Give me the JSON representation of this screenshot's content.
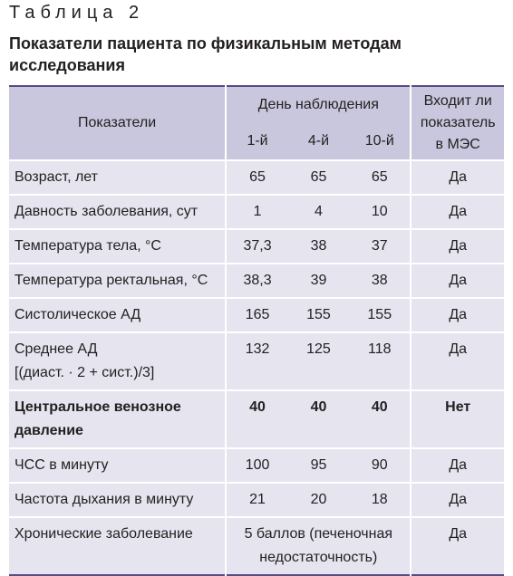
{
  "header": {
    "label": "Таблица 2",
    "title": "Показатели пациента по физикальным методам исследования"
  },
  "table": {
    "columns": {
      "indicator": "Показатели",
      "days": "День наблюдения",
      "day_list": [
        "1-й",
        "4-й",
        "10-й"
      ],
      "mes": "Входит ли показатель в МЭС"
    },
    "rows": [
      {
        "label": "Возраст, лет",
        "values": [
          "65",
          "65",
          "65"
        ],
        "mes": "Да"
      },
      {
        "label": "Давность заболевания, сут",
        "values": [
          "1",
          "4",
          "10"
        ],
        "mes": "Да"
      },
      {
        "label": "Температура тела, °С",
        "values": [
          "37,3",
          "38",
          "37"
        ],
        "mes": "Да"
      },
      {
        "label": "Температура ректальная, °С",
        "values": [
          "38,3",
          "39",
          "38"
        ],
        "mes": "Да"
      },
      {
        "label": "Систолическое АД",
        "values": [
          "165",
          "155",
          "155"
        ],
        "mes": "Да"
      },
      {
        "label": "Среднее АД\n[(диаст. · 2 + сист.)/3]",
        "values": [
          "132",
          "125",
          "118"
        ],
        "mes": "Да"
      },
      {
        "label": "Центральное венозное давление",
        "values": [
          "40",
          "40",
          "40"
        ],
        "mes": "Нет",
        "bold": true
      },
      {
        "label": "ЧСС в минуту",
        "values": [
          "100",
          "95",
          "90"
        ],
        "mes": "Да"
      },
      {
        "label": "Частота дыхания в минуту",
        "values": [
          "21",
          "20",
          "18"
        ],
        "mes": "Да"
      },
      {
        "label": "Хронические заболевание",
        "values": [
          "5 баллов (печеночная недостаточность)"
        ],
        "mes": "Да"
      }
    ]
  }
}
